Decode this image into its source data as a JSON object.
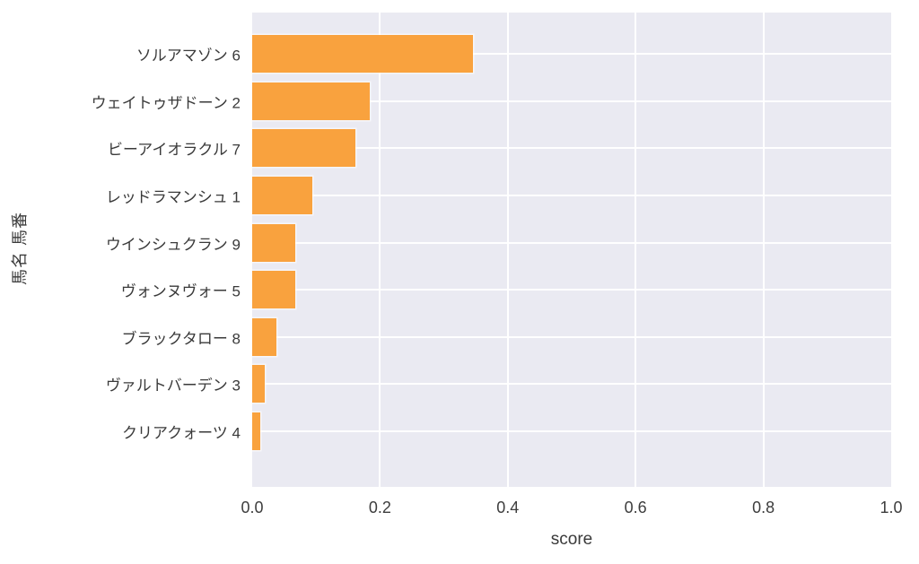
{
  "chart_data": {
    "type": "bar",
    "orientation": "horizontal",
    "xlabel": "score",
    "ylabel": "馬名 馬番",
    "categories": [
      "ソルアマゾン 6",
      "ウェイトゥザドーン 2",
      "ビーアイオラクル 7",
      "レッドラマンシュ 1",
      "ウインシュクラン 9",
      "ヴォンヌヴォー 5",
      "ブラックタロー 8",
      "ヴァルトバーデン 3",
      "クリアクォーツ 4"
    ],
    "values": [
      0.345,
      0.184,
      0.162,
      0.094,
      0.067,
      0.068,
      0.038,
      0.019,
      0.013
    ],
    "xlim": [
      0.0,
      1.0
    ],
    "x_ticks": [
      "0.0",
      "0.2",
      "0.4",
      "0.6",
      "0.8",
      "1.0"
    ],
    "grid": true,
    "legend": false,
    "bar_color": "#f9a23e",
    "plot_bg": "#eaeaf2",
    "grid_color": "#ffffff",
    "text_color": "#3a3a3a"
  }
}
